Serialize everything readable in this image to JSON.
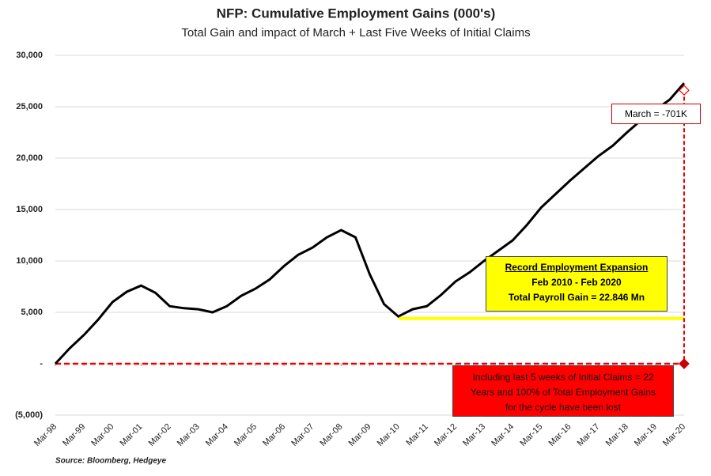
{
  "chart_data": {
    "type": "line",
    "title": "NFP: Cumulative Employment Gains (000's)",
    "subtitle": "Total Gain and impact of March + Last Five Weeks of Initial Claims",
    "source": "Source: Bloomberg, Hedgeye",
    "x": [
      "Mar-98",
      "Sep-98",
      "Mar-99",
      "Sep-99",
      "Mar-00",
      "Sep-00",
      "Mar-01",
      "Sep-01",
      "Mar-02",
      "Sep-02",
      "Mar-03",
      "Sep-03",
      "Mar-04",
      "Sep-04",
      "Mar-05",
      "Sep-05",
      "Mar-06",
      "Sep-06",
      "Mar-07",
      "Sep-07",
      "Mar-08",
      "Sep-08",
      "Mar-09",
      "Sep-09",
      "Mar-10",
      "Sep-10",
      "Mar-11",
      "Sep-11",
      "Mar-12",
      "Sep-12",
      "Mar-13",
      "Sep-13",
      "Mar-14",
      "Sep-14",
      "Mar-15",
      "Sep-15",
      "Mar-16",
      "Sep-16",
      "Mar-17",
      "Sep-17",
      "Mar-18",
      "Sep-18",
      "Mar-19",
      "Sep-19",
      "Mar-20"
    ],
    "series": [
      {
        "color": "#000000",
        "values": [
          0,
          1500,
          2800,
          4300,
          6000,
          7000,
          7600,
          6900,
          5600,
          5400,
          5300,
          5000,
          5600,
          6600,
          7300,
          8200,
          9500,
          10600,
          11300,
          12300,
          13000,
          12300,
          8700,
          5800,
          4600,
          5300,
          5600,
          6700,
          8000,
          8900,
          10000,
          11000,
          12000,
          13500,
          15200,
          16500,
          17800,
          19000,
          20200,
          21200,
          22500,
          23700,
          24700,
          25700,
          27300
        ]
      }
    ],
    "xticks": [
      "Mar-98",
      "Mar-99",
      "Mar-00",
      "Mar-01",
      "Mar-02",
      "Mar-03",
      "Mar-04",
      "Mar-05",
      "Mar-06",
      "Mar-07",
      "Mar-08",
      "Mar-09",
      "Mar-10",
      "Mar-11",
      "Mar-12",
      "Mar-13",
      "Mar-14",
      "Mar-15",
      "Mar-16",
      "Mar-17",
      "Mar-18",
      "Mar-19",
      "Mar-20"
    ],
    "ylim": [
      -5000,
      30000
    ],
    "yticks": [
      {
        "value": -5000,
        "label": "(5,000)"
      },
      {
        "value": 0,
        "label": "-"
      },
      {
        "value": 5000,
        "label": "5,000"
      },
      {
        "value": 10000,
        "label": "10,000"
      },
      {
        "value": 15000,
        "label": "15,000"
      },
      {
        "value": 20000,
        "label": "20,000"
      },
      {
        "value": 25000,
        "label": "25,000"
      },
      {
        "value": 30000,
        "label": "30,000"
      }
    ],
    "grid": true,
    "markers": [
      {
        "x": "Mar-20",
        "value": 26600,
        "style": "hollow",
        "color": "#ff0000"
      },
      {
        "x": "Mar-20",
        "value": 0,
        "style": "filled",
        "color": "#cc0000"
      }
    ],
    "level_line": {
      "value": 4400,
      "from": "Mar-10",
      "to": "Mar-20",
      "color": "#ffff00"
    },
    "march_label": "March = -701K",
    "expansion_box": [
      "Record Employment Expansion",
      "Feb 2010 - Feb 2020",
      "Total Payroll Gain = 22.846 Mn"
    ],
    "claims_box": [
      "Including last 5 weeks of Initial Claims = 22",
      "Years and 100% of Total Employment Gains",
      "for the cycle have been lost"
    ]
  }
}
